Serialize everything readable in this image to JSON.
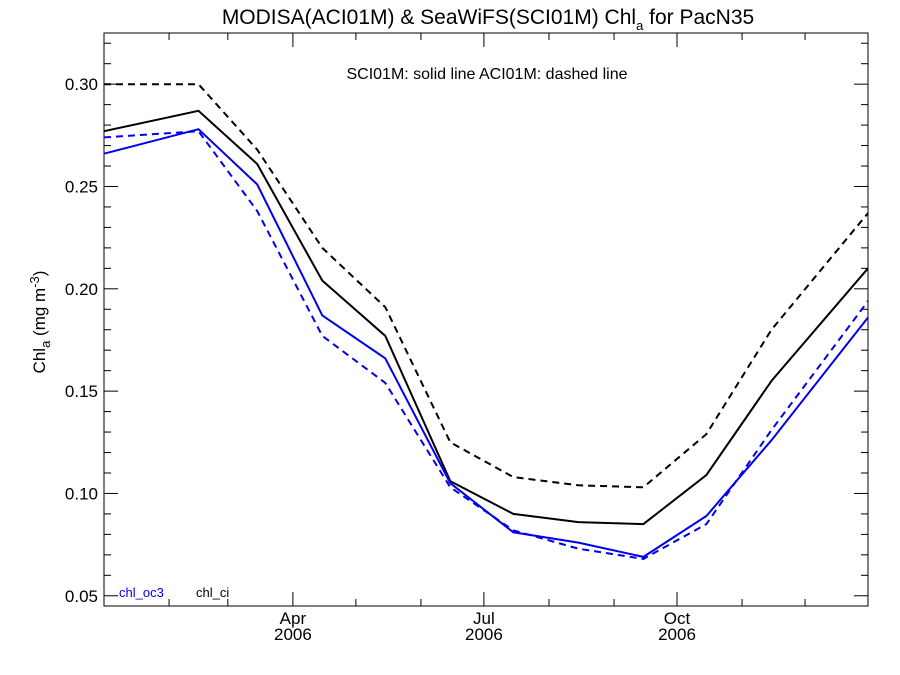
{
  "chart_data": {
    "type": "line",
    "title": {
      "main": "MODISA(ACI01M) & SeaWiFS(SCI01M)  Chl",
      "sub": "a",
      "tail": " for PacN35"
    },
    "annotation": "SCI01M: solid line   ACI01M: dashed line",
    "ylabel": {
      "pre": "Chl",
      "sub": "a",
      "mid": " (mg m",
      "sup": "-3",
      "post": ")"
    },
    "ylim": [
      0.045,
      0.325
    ],
    "yticks": [
      0.05,
      0.1,
      0.15,
      0.2,
      0.25,
      0.3
    ],
    "ytick_labels": [
      "0.05",
      "0.10",
      "0.15",
      "0.20",
      "0.25",
      "0.30"
    ],
    "xlim": [
      "2006-01-01",
      "2006-12-31"
    ],
    "xticks": [
      {
        "date": "2006-04-01",
        "month": "Apr",
        "year": "2006"
      },
      {
        "date": "2006-07-01",
        "month": "Jul",
        "year": "2006"
      },
      {
        "date": "2006-10-01",
        "month": "Oct",
        "year": "2006"
      }
    ],
    "x": [
      "2006-01-01",
      "2006-02-15",
      "2006-03-15",
      "2006-04-15",
      "2006-05-15",
      "2006-06-15",
      "2006-07-15",
      "2006-08-15",
      "2006-09-15",
      "2006-10-15",
      "2006-11-15",
      "2006-12-31"
    ],
    "series": [
      {
        "name": "",
        "color": "#000000",
        "dash": false,
        "values": [
          0.277,
          0.287,
          0.261,
          0.204,
          0.177,
          0.106,
          0.09,
          0.086,
          0.085,
          0.109,
          0.155,
          0.21
        ]
      },
      {
        "name": "",
        "color": "#000000",
        "dash": true,
        "values": [
          0.3,
          0.3,
          0.268,
          0.22,
          0.191,
          0.125,
          0.108,
          0.104,
          0.103,
          0.129,
          0.18,
          0.237
        ]
      },
      {
        "name": "",
        "color": "#0000ee",
        "dash": false,
        "values": [
          0.266,
          0.278,
          0.251,
          0.187,
          0.166,
          0.105,
          0.081,
          0.076,
          0.069,
          0.089,
          0.126,
          0.186
        ]
      },
      {
        "name": "",
        "color": "#0000ee",
        "dash": true,
        "values": [
          0.274,
          0.277,
          0.238,
          0.177,
          0.154,
          0.103,
          0.082,
          0.073,
          0.068,
          0.085,
          0.131,
          0.194
        ]
      }
    ],
    "legend": [
      {
        "label": "chl_oc3",
        "color": "#0000ee"
      },
      {
        "label": "chl_ci",
        "color": "#000000"
      }
    ],
    "legend_placement": "bottom-left",
    "grid": false
  }
}
